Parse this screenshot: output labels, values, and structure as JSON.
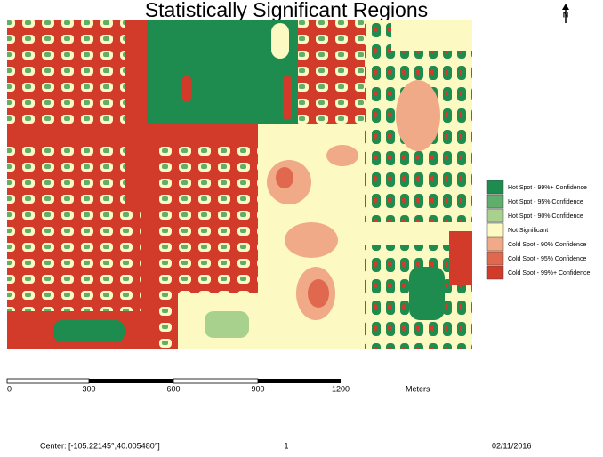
{
  "title": "Statistically Significant Regions",
  "north": "N",
  "legend": {
    "items": [
      {
        "label": "Hot Spot - 99%+ Confidence",
        "color": "#1e8c4e"
      },
      {
        "label": "Hot Spot - 95% Confidence",
        "color": "#5fae6b"
      },
      {
        "label": "Hot Spot - 90% Confidence",
        "color": "#a9d18e"
      },
      {
        "label": "Not Significant",
        "color": "#fdf9c2"
      },
      {
        "label": "Cold Spot - 90% Confidence",
        "color": "#f0aa88"
      },
      {
        "label": "Cold Spot - 95% Confidence",
        "color": "#e0684e"
      },
      {
        "label": "Cold Spot - 99%+ Confidence",
        "color": "#d23a2a"
      }
    ]
  },
  "scalebar": {
    "ticks": [
      "0",
      "300",
      "600",
      "900",
      "1200"
    ],
    "unit": "Meters"
  },
  "footer": {
    "center": "Center: [-105.22145°,40.005480°]",
    "page": "1",
    "date": "02/11/2016"
  }
}
